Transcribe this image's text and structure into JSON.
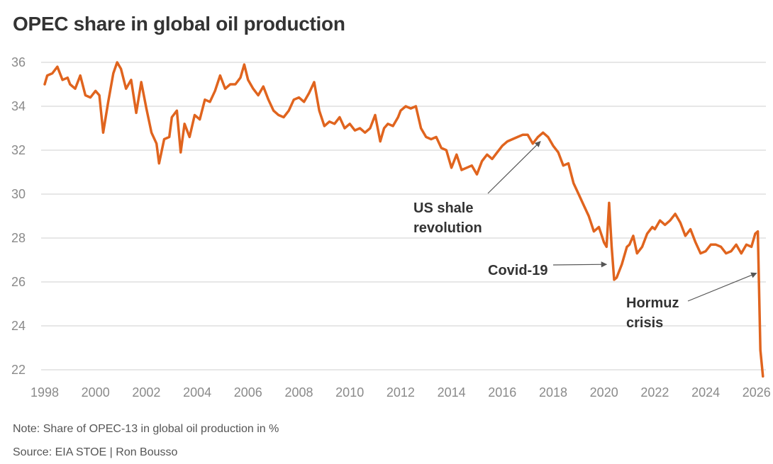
{
  "header": {
    "title": "OPEC share in global oil production"
  },
  "footer": {
    "note": "Note: Share of OPEC-13 in global oil production in %",
    "source": "Source: EIA STOE | Ron Bousso"
  },
  "colors": {
    "line": "#e0641e",
    "grid": "#cfcfcf",
    "tick_text": "#8a8a8a",
    "text": "#333333"
  },
  "chart_data": {
    "type": "line",
    "title": "OPEC share in global oil production",
    "ylim": [
      21.5,
      36.5
    ],
    "xlim": [
      1998,
      2026.4
    ],
    "grid": "horizontal",
    "y_ticks": [
      "22",
      "24",
      "26",
      "28",
      "30",
      "32",
      "34",
      "36"
    ],
    "x_ticks": [
      "1998",
      "2000",
      "2002",
      "2004",
      "2006",
      "2008",
      "2010",
      "2012",
      "2014",
      "2016",
      "2018",
      "2020",
      "2022",
      "2024",
      "2026"
    ],
    "annotations": [
      {
        "lines": [
          "US shale",
          "revolution"
        ],
        "target": [
          2017.5,
          32.4
        ]
      },
      {
        "lines": [
          "Covid-19"
        ],
        "target": [
          2020.1,
          26.8
        ]
      },
      {
        "lines": [
          "Hormuz",
          "crisis"
        ],
        "target": [
          2026.0,
          26.4
        ]
      }
    ],
    "series": [
      {
        "x": [
          1998.0,
          1998.1,
          1998.3,
          1998.5,
          1998.7,
          1998.9,
          1999.0,
          1999.2,
          1999.4,
          1999.6,
          1999.8,
          2000.0,
          2000.15,
          2000.3,
          2000.5,
          2000.7,
          2000.85,
          2001.0,
          2001.2,
          2001.4,
          2001.6,
          2001.8,
          2002.0,
          2002.2,
          2002.4,
          2002.5,
          2002.7,
          2002.9,
          2003.0,
          2003.2,
          2003.35,
          2003.5,
          2003.7,
          2003.9,
          2004.1,
          2004.3,
          2004.5,
          2004.7,
          2004.9,
          2005.1,
          2005.3,
          2005.5,
          2005.7,
          2005.85,
          2006.0,
          2006.2,
          2006.4,
          2006.6,
          2006.8,
          2007.0,
          2007.2,
          2007.4,
          2007.6,
          2007.8,
          2008.0,
          2008.2,
          2008.4,
          2008.6,
          2008.8,
          2009.0,
          2009.2,
          2009.4,
          2009.6,
          2009.8,
          2010.0,
          2010.2,
          2010.4,
          2010.6,
          2010.8,
          2011.0,
          2011.2,
          2011.35,
          2011.5,
          2011.7,
          2011.9,
          2012.0,
          2012.2,
          2012.4,
          2012.6,
          2012.8,
          2013.0,
          2013.2,
          2013.4,
          2013.6,
          2013.8,
          2014.0,
          2014.2,
          2014.4,
          2014.6,
          2014.8,
          2015.0,
          2015.2,
          2015.4,
          2015.6,
          2015.8,
          2016.0,
          2016.2,
          2016.4,
          2016.6,
          2016.8,
          2017.0,
          2017.2,
          2017.4,
          2017.6,
          2017.8,
          2018.0,
          2018.2,
          2018.4,
          2018.6,
          2018.8,
          2019.0,
          2019.2,
          2019.4,
          2019.6,
          2019.8,
          2020.0,
          2020.1,
          2020.2,
          2020.3,
          2020.4,
          2020.5,
          2020.7,
          2020.9,
          2021.0,
          2021.15,
          2021.3,
          2021.5,
          2021.7,
          2021.9,
          2022.0,
          2022.2,
          2022.4,
          2022.6,
          2022.8,
          2023.0,
          2023.2,
          2023.4,
          2023.6,
          2023.8,
          2024.0,
          2024.2,
          2024.4,
          2024.6,
          2024.8,
          2025.0,
          2025.2,
          2025.4,
          2025.6,
          2025.8,
          2025.95,
          2026.05,
          2026.15,
          2026.25
        ],
        "values": [
          35.0,
          35.4,
          35.5,
          35.8,
          35.2,
          35.3,
          35.0,
          34.8,
          35.4,
          34.5,
          34.4,
          34.7,
          34.5,
          32.8,
          34.2,
          35.5,
          36.0,
          35.7,
          34.8,
          35.2,
          33.7,
          35.1,
          33.9,
          32.8,
          32.3,
          31.4,
          32.5,
          32.6,
          33.5,
          33.8,
          31.9,
          33.2,
          32.6,
          33.6,
          33.4,
          34.3,
          34.2,
          34.7,
          35.4,
          34.8,
          35.0,
          35.0,
          35.3,
          35.9,
          35.2,
          34.8,
          34.5,
          34.9,
          34.3,
          33.8,
          33.6,
          33.5,
          33.8,
          34.3,
          34.4,
          34.2,
          34.6,
          35.1,
          33.8,
          33.1,
          33.3,
          33.2,
          33.5,
          33.0,
          33.2,
          32.9,
          33.0,
          32.8,
          33.0,
          33.6,
          32.4,
          33.0,
          33.2,
          33.1,
          33.5,
          33.8,
          34.0,
          33.9,
          34.0,
          33.0,
          32.6,
          32.5,
          32.6,
          32.1,
          32.0,
          31.2,
          31.8,
          31.1,
          31.2,
          31.3,
          30.9,
          31.5,
          31.8,
          31.6,
          31.9,
          32.2,
          32.4,
          32.5,
          32.6,
          32.7,
          32.7,
          32.3,
          32.6,
          32.8,
          32.6,
          32.2,
          31.9,
          31.3,
          31.4,
          30.5,
          30.0,
          29.5,
          29.0,
          28.3,
          28.5,
          27.8,
          27.6,
          29.6,
          27.6,
          26.1,
          26.2,
          26.8,
          27.6,
          27.7,
          28.1,
          27.3,
          27.6,
          28.2,
          28.5,
          28.4,
          28.8,
          28.6,
          28.8,
          29.1,
          28.7,
          28.1,
          28.4,
          27.8,
          27.3,
          27.4,
          27.7,
          27.7,
          27.6,
          27.3,
          27.4,
          27.7,
          27.3,
          27.7,
          27.6,
          28.2,
          28.3,
          22.9,
          21.7
        ]
      }
    ]
  }
}
